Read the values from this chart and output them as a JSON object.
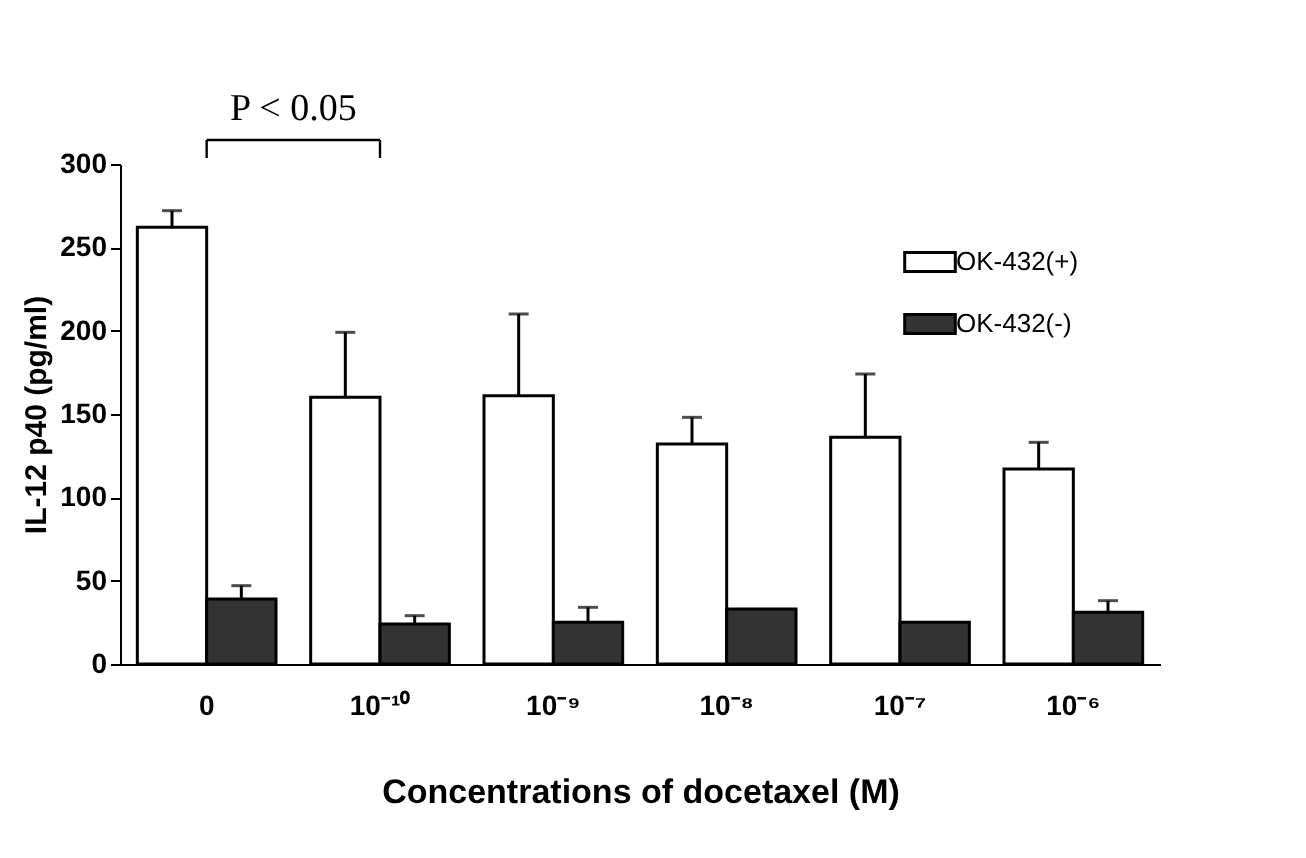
{
  "chart_data": {
    "type": "bar",
    "xlabel": "Concentrations of docetaxel (M)",
    "ylabel": "IL-12 p40 (pg/ml)",
    "categories": [
      "0",
      "10⁻¹⁰",
      "10⁻⁹",
      "10⁻⁸",
      "10⁻⁷",
      "10⁻⁶"
    ],
    "series": [
      {
        "name": "OK-432(+)",
        "color": "#ffffff",
        "values": [
          262,
          160,
          161,
          132,
          136,
          117
        ],
        "errors": [
          10,
          39,
          49,
          16,
          38,
          16
        ]
      },
      {
        "name": "OK-432(-)",
        "color": "#333333",
        "values": [
          39,
          24,
          25,
          33,
          25,
          31
        ],
        "errors": [
          8,
          5,
          9,
          null,
          null,
          7
        ]
      }
    ],
    "ylim": [
      0,
      300
    ],
    "yticks": [
      0,
      50,
      100,
      150,
      200,
      250,
      300
    ],
    "grid": false,
    "legend": "top right",
    "annotations": [
      "P < 0.05"
    ]
  }
}
